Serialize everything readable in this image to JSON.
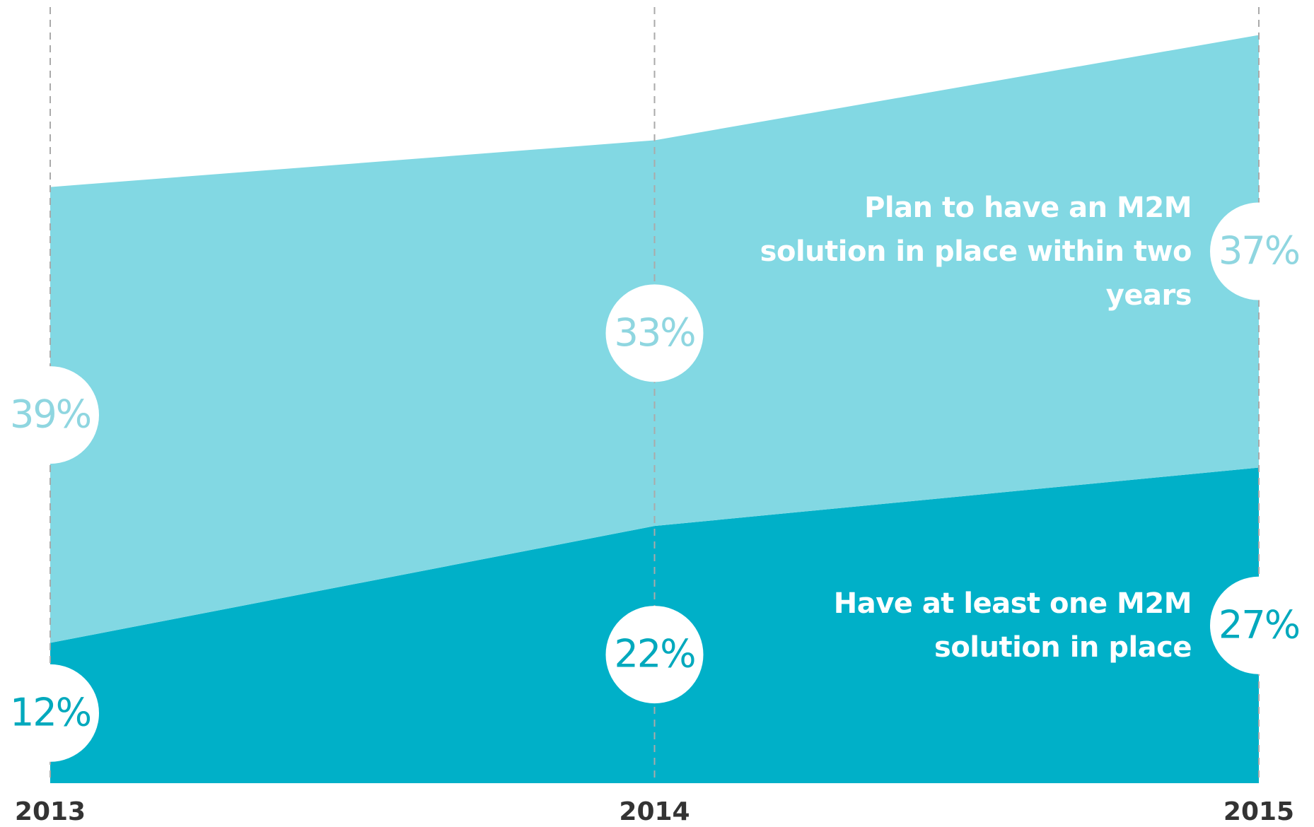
{
  "chart_data": {
    "type": "stacked_area",
    "categories": [
      "2013",
      "2014",
      "2015"
    ],
    "ylim": [
      0,
      67
    ],
    "series": [
      {
        "name": "Have at least one M2M solution in place",
        "color": "#00b0c8",
        "label_color": "#00a9bd",
        "values": [
          12,
          22,
          27
        ],
        "value_labels": [
          "12%",
          "22%",
          "27%"
        ]
      },
      {
        "name": "Plan to have an M2M solution in place within two years",
        "color": "#82d8e3",
        "label_color": "#8fd6e0",
        "values": [
          39,
          33,
          37
        ],
        "value_labels": [
          "39%",
          "33%",
          "37%"
        ]
      }
    ]
  }
}
